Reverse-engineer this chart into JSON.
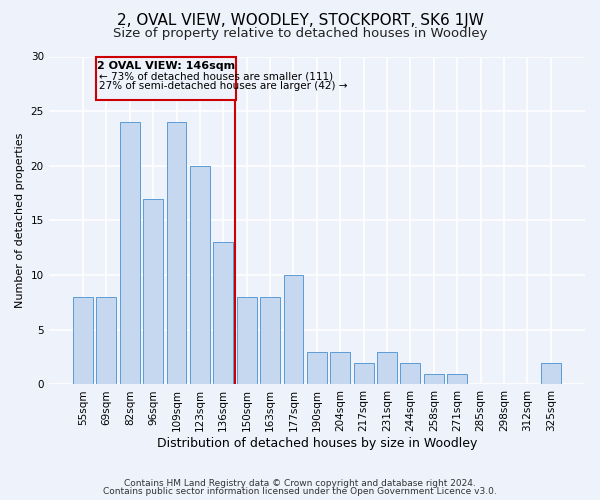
{
  "title": "2, OVAL VIEW, WOODLEY, STOCKPORT, SK6 1JW",
  "subtitle": "Size of property relative to detached houses in Woodley",
  "xlabel": "Distribution of detached houses by size in Woodley",
  "ylabel": "Number of detached properties",
  "categories": [
    "55sqm",
    "69sqm",
    "82sqm",
    "96sqm",
    "109sqm",
    "123sqm",
    "136sqm",
    "150sqm",
    "163sqm",
    "177sqm",
    "190sqm",
    "204sqm",
    "217sqm",
    "231sqm",
    "244sqm",
    "258sqm",
    "271sqm",
    "285sqm",
    "298sqm",
    "312sqm",
    "325sqm"
  ],
  "values": [
    8,
    8,
    24,
    17,
    24,
    20,
    13,
    8,
    8,
    10,
    3,
    3,
    2,
    3,
    2,
    1,
    1,
    0,
    0,
    0,
    2
  ],
  "bar_color": "#c5d8f0",
  "bar_edge_color": "#5b9bd5",
  "background_color": "#eef2fb",
  "grid_color": "#ffffff",
  "marker_label": "2 OVAL VIEW: 146sqm",
  "marker_line_color": "#cc0000",
  "annotation_line1": "← 73% of detached houses are smaller (111)",
  "annotation_line2": "27% of semi-detached houses are larger (42) →",
  "annotation_box_color": "#cc0000",
  "ylim": [
    0,
    30
  ],
  "yticks": [
    0,
    5,
    10,
    15,
    20,
    25,
    30
  ],
  "footnote1": "Contains HM Land Registry data © Crown copyright and database right 2024.",
  "footnote2": "Contains public sector information licensed under the Open Government Licence v3.0.",
  "title_fontsize": 11,
  "subtitle_fontsize": 9.5,
  "xlabel_fontsize": 9,
  "ylabel_fontsize": 8,
  "tick_fontsize": 7.5,
  "footnote_fontsize": 6.5
}
